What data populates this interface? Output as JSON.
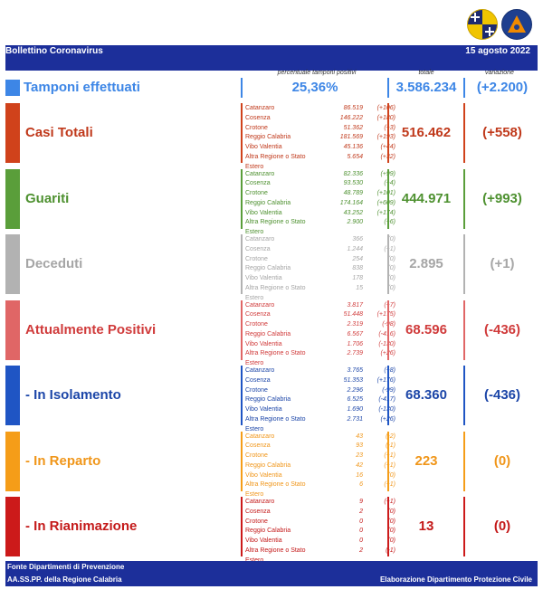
{
  "header": {
    "title": "Bollettino Coronavirus",
    "date": "15 agosto 2022"
  },
  "columns": {
    "pct": "percentuale tamponi positivi",
    "total": "totale",
    "var": "variazione"
  },
  "tamponi": {
    "label": "Tamponi effettuati",
    "pct": "25,36%",
    "total": "3.586.234",
    "var": "(+2.200)",
    "color": "#3d86e6"
  },
  "sections": [
    {
      "label": "Casi Totali",
      "color": "#d0421b",
      "total": "516.462",
      "var": "(+558)",
      "rows": [
        [
          "Catanzaro",
          "86.519",
          "(+106)"
        ],
        [
          "Cosenza",
          "146.222",
          "(+180)"
        ],
        [
          "Crotone",
          "51.362",
          "(+3)"
        ],
        [
          "Reggio Calabria",
          "181.569",
          "(+193)"
        ],
        [
          "Vibo Valentia",
          "45.136",
          "(+44)"
        ],
        [
          "Altra Regione o Stato Estero",
          "5.654",
          "(+32)"
        ]
      ]
    },
    {
      "label": "Guariti",
      "color": "#5a9e3a",
      "total": "444.971",
      "var": "(+993)",
      "rows": [
        [
          "Catanzaro",
          "82.336",
          "(+99)"
        ],
        [
          "Cosenza",
          "93.530",
          "(+4)"
        ],
        [
          "Crotone",
          "48.789",
          "(+101)"
        ],
        [
          "Reggio Calabria",
          "174.164",
          "(+609)"
        ],
        [
          "Vibo Valentia",
          "43.252",
          "(+174)"
        ],
        [
          "Altra Regione o Stato Estero",
          "2.900",
          "(+6)"
        ]
      ]
    },
    {
      "label": "Deceduti",
      "color": "#b2b2b2",
      "total": "2.895",
      "var": "(+1)",
      "rows": [
        [
          "Catanzaro",
          "366",
          "(0)"
        ],
        [
          "Cosenza",
          "1.244",
          "(+1)"
        ],
        [
          "Crotone",
          "254",
          "(0)"
        ],
        [
          "Reggio Calabria",
          "838",
          "(0)"
        ],
        [
          "Vibo Valentia",
          "178",
          "(0)"
        ],
        [
          "Altra Regione o Stato Estero",
          "15",
          "(0)"
        ]
      ]
    },
    {
      "label": "Attualmente Positivi",
      "color": "#e06666",
      "total": "68.596",
      "var": "(-436)",
      "rows": [
        [
          "Catanzaro",
          "3.817",
          "(+7)"
        ],
        [
          "Cosenza",
          "51.448",
          "(+175)"
        ],
        [
          "Crotone",
          "2.319",
          "(-98)"
        ],
        [
          "Reggio Calabria",
          "6.567",
          "(-416)"
        ],
        [
          "Vibo Valentia",
          "1.706",
          "(-130)"
        ],
        [
          "Altra Regione o Stato Estero",
          "2.739",
          "(+26)"
        ]
      ]
    },
    {
      "label": "- In Isolamento",
      "color": "#1f55c4",
      "total": "68.360",
      "var": "(-436)",
      "rows": [
        [
          "Catanzaro",
          "3.765",
          "(+8)"
        ],
        [
          "Cosenza",
          "51.353",
          "(+176)"
        ],
        [
          "Crotone",
          "2.296",
          "(-99)"
        ],
        [
          "Reggio Calabria",
          "6.525",
          "(-417)"
        ],
        [
          "Vibo Valentia",
          "1.690",
          "(-130)"
        ],
        [
          "Altra Regione o Stato Estero",
          "2.731",
          "(+26)"
        ]
      ]
    },
    {
      "label": "- In Reparto",
      "color": "#f59d18",
      "total": "223",
      "var": "(0)",
      "rows": [
        [
          "Catanzaro",
          "43",
          "(-2)"
        ],
        [
          "Cosenza",
          "93",
          "(-1)"
        ],
        [
          "Crotone",
          "23",
          "(+1)"
        ],
        [
          "Reggio Calabria",
          "42",
          "(+1)"
        ],
        [
          "Vibo Valentia",
          "16",
          "(0)"
        ],
        [
          "Altra Regione o Stato Estero",
          "6",
          "(+1)"
        ]
      ]
    },
    {
      "label": "- In Rianimazione",
      "color": "#cc1a1a",
      "total": "13",
      "var": "(0)",
      "rows": [
        [
          "Catanzaro",
          "9",
          "(+1)"
        ],
        [
          "Cosenza",
          "2",
          "(0)"
        ],
        [
          "Crotone",
          "0",
          "(0)"
        ],
        [
          "Reggio Calabria",
          "0",
          "(0)"
        ],
        [
          "Vibo Valentia",
          "0",
          "(0)"
        ],
        [
          "Altra Regione o Stato Estero",
          "2",
          "(-1)"
        ]
      ]
    }
  ],
  "footer": {
    "line1": "Fonte Dipartimenti di Prevenzione",
    "line2": "AA.SS.PP.  della Regione Calabria",
    "right": "Elaborazione Dipartimento Protezione Civile"
  },
  "row_text_colors": {
    "Casi Totali": "#c0391b",
    "Guariti": "#4e9130",
    "Deceduti": "#a6a6a6",
    "Attualmente Positivi": "#d03b3b",
    "- In Isolamento": "#1c46a8",
    "- In Reparto": "#f0961a",
    "- In Rianimazione": "#c41a1a"
  }
}
